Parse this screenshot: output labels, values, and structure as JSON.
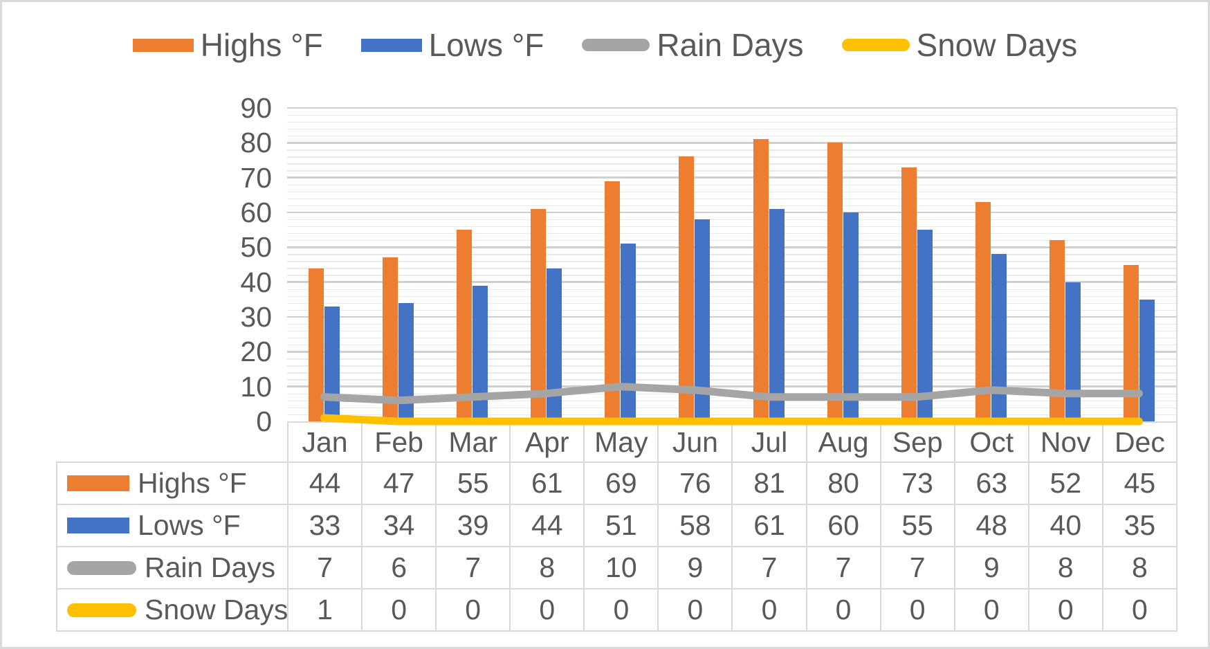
{
  "frame": {
    "background": "#FFFFFF",
    "border_color": "#DADADA"
  },
  "legend": {
    "items": [
      {
        "label": "Highs °F",
        "swatch": "bar",
        "color": "#ED7D31"
      },
      {
        "label": "Lows °F",
        "swatch": "bar",
        "color": "#4472C4"
      },
      {
        "label": "Rain Days",
        "swatch": "line",
        "color": "#A5A5A5"
      },
      {
        "label": "Snow Days",
        "swatch": "line",
        "color": "#FFC000"
      }
    ]
  },
  "chart_data": {
    "type": "combo-bar-line",
    "categories": [
      "Jan",
      "Feb",
      "Mar",
      "Apr",
      "May",
      "Jun",
      "Jul",
      "Aug",
      "Sep",
      "Oct",
      "Nov",
      "Dec"
    ],
    "series": [
      {
        "name": "Highs °F",
        "type": "bar",
        "color": "#ED7D31",
        "values": [
          44,
          47,
          55,
          61,
          69,
          76,
          81,
          80,
          73,
          63,
          52,
          45
        ]
      },
      {
        "name": "Lows °F",
        "type": "bar",
        "color": "#4472C4",
        "values": [
          33,
          34,
          39,
          44,
          51,
          58,
          61,
          60,
          55,
          48,
          40,
          35
        ]
      },
      {
        "name": "Rain Days",
        "type": "line",
        "color": "#A5A5A5",
        "values": [
          7,
          6,
          7,
          8,
          10,
          9,
          7,
          7,
          7,
          9,
          8,
          8
        ]
      },
      {
        "name": "Snow Days",
        "type": "line",
        "color": "#FFC000",
        "values": [
          1,
          0,
          0,
          0,
          0,
          0,
          0,
          0,
          0,
          0,
          0,
          0
        ]
      }
    ],
    "y_axis": {
      "min": 0,
      "max": 90,
      "major_step": 10,
      "minor_step": 2,
      "tick_labels": [
        "90",
        "80",
        "70",
        "60",
        "50",
        "40",
        "30",
        "20",
        "10",
        "0"
      ]
    },
    "grid": {
      "major": true,
      "minor": true
    },
    "legend_position": "top",
    "data_table_shown": true,
    "colors": {
      "grid_major": "#CFCFCF",
      "grid_minor": "#E9E9E9",
      "axis_text": "#595959",
      "table_border": "#D9D9D9"
    }
  }
}
